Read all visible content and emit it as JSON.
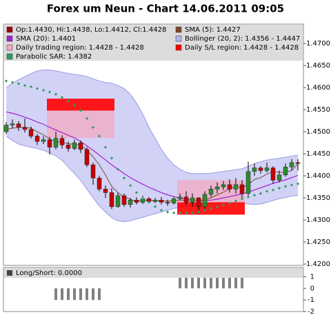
{
  "chart_data": {
    "type": "candlestick",
    "title": "Forex um Neun - Chart 14.06.2011 09:05",
    "ylim": [
      1.4197,
      1.4744
    ],
    "yticks": [
      {
        "value": 1.47,
        "label": "1.4700"
      },
      {
        "value": 1.465,
        "label": "1.4650"
      },
      {
        "value": 1.46,
        "label": "1.4600"
      },
      {
        "value": 1.455,
        "label": "1.4550"
      },
      {
        "value": 1.45,
        "label": "1.4500"
      },
      {
        "value": 1.445,
        "label": "1.4450"
      },
      {
        "value": 1.44,
        "label": "1.4400"
      },
      {
        "value": 1.435,
        "label": "1.4350"
      },
      {
        "value": 1.43,
        "label": "1.4300"
      },
      {
        "value": 1.425,
        "label": "1.4250"
      },
      {
        "value": 1.42,
        "label": "1.4200"
      }
    ],
    "candles": {
      "name": "Op:1.4430, Hi:1.4438, Lo:1.4412, Cl:1.4428",
      "color": "#a00000",
      "up_color": "#2e8b2e",
      "down_color": "#c80000",
      "open": [
        1.45,
        1.4515,
        1.4518,
        1.451,
        1.4505,
        1.449,
        1.4478,
        1.4482,
        1.4465,
        1.4485,
        1.447,
        1.4462,
        1.4475,
        1.446,
        1.4425,
        1.4395,
        1.437,
        1.4362,
        1.433,
        1.4355,
        1.4335,
        1.4345,
        1.434,
        1.4348,
        1.4342,
        1.4345,
        1.434,
        1.4338,
        1.4348,
        1.4352,
        1.434,
        1.435,
        1.433,
        1.4358,
        1.437,
        1.4375,
        1.438,
        1.437,
        1.438,
        1.436,
        1.441,
        1.4418,
        1.4412,
        1.4418,
        1.439,
        1.4402,
        1.442,
        1.443
      ],
      "high": [
        1.4522,
        1.4528,
        1.4524,
        1.453,
        1.4512,
        1.4495,
        1.449,
        1.4488,
        1.45,
        1.4492,
        1.4478,
        1.4482,
        1.448,
        1.4465,
        1.443,
        1.44,
        1.4378,
        1.4372,
        1.4362,
        1.436,
        1.435,
        1.4352,
        1.4355,
        1.4352,
        1.435,
        1.4352,
        1.4346,
        1.4352,
        1.436,
        1.4365,
        1.436,
        1.4352,
        1.4365,
        1.4378,
        1.4385,
        1.4388,
        1.4392,
        1.4395,
        1.439,
        1.4432,
        1.4428,
        1.4422,
        1.443,
        1.4422,
        1.4412,
        1.4428,
        1.4438,
        1.4438
      ],
      "low": [
        1.4495,
        1.4508,
        1.4502,
        1.4498,
        1.4485,
        1.447,
        1.4472,
        1.4448,
        1.446,
        1.4462,
        1.4455,
        1.4458,
        1.4452,
        1.442,
        1.438,
        1.4365,
        1.435,
        1.4325,
        1.4328,
        1.433,
        1.4328,
        1.4335,
        1.4336,
        1.4338,
        1.4338,
        1.4335,
        1.4332,
        1.4335,
        1.4345,
        1.4335,
        1.433,
        1.4322,
        1.4325,
        1.4352,
        1.436,
        1.4368,
        1.4362,
        1.436,
        1.4348,
        1.4355,
        1.44,
        1.4405,
        1.4408,
        1.4382,
        1.4385,
        1.4398,
        1.4412,
        1.4412
      ],
      "close": [
        1.4515,
        1.4518,
        1.451,
        1.4505,
        1.449,
        1.4478,
        1.4482,
        1.4465,
        1.4485,
        1.447,
        1.4462,
        1.4475,
        1.446,
        1.4425,
        1.4395,
        1.437,
        1.4362,
        1.433,
        1.4355,
        1.4335,
        1.4345,
        1.434,
        1.4348,
        1.4342,
        1.4345,
        1.434,
        1.4338,
        1.4348,
        1.4352,
        1.434,
        1.435,
        1.433,
        1.4358,
        1.437,
        1.4375,
        1.438,
        1.437,
        1.438,
        1.436,
        1.441,
        1.4418,
        1.4412,
        1.4418,
        1.439,
        1.4402,
        1.442,
        1.443,
        1.4428
      ]
    },
    "sma5": {
      "name": "SMA (5): 1.4427",
      "color": "#7a4a2a",
      "values": [
        1.4505,
        1.4508,
        1.451,
        1.451,
        1.4508,
        1.45,
        1.4493,
        1.4484,
        1.4478,
        1.4476,
        1.4473,
        1.4471,
        1.447,
        1.4458,
        1.4443,
        1.4425,
        1.4402,
        1.4376,
        1.4362,
        1.4352,
        1.4347,
        1.4341,
        1.4345,
        1.4344,
        1.4344,
        1.4343,
        1.4343,
        1.4343,
        1.4345,
        1.4344,
        1.4346,
        1.4344,
        1.4346,
        1.435,
        1.4357,
        1.4363,
        1.4371,
        1.4375,
        1.4373,
        1.438,
        1.4392,
        1.4396,
        1.4404,
        1.441,
        1.4408,
        1.4408,
        1.4412,
        1.4427
      ]
    },
    "sma20": {
      "name": "SMA (20): 1.4401",
      "color": "#a020d0",
      "values": [
        1.4545,
        1.4542,
        1.4538,
        1.4533,
        1.4528,
        1.4522,
        1.4517,
        1.451,
        1.4504,
        1.4498,
        1.4492,
        1.4486,
        1.4478,
        1.4468,
        1.4458,
        1.4447,
        1.4436,
        1.4425,
        1.4415,
        1.4405,
        1.4396,
        1.4388,
        1.4381,
        1.4374,
        1.4368,
        1.4362,
        1.4357,
        1.4353,
        1.435,
        1.4347,
        1.4345,
        1.4344,
        1.4344,
        1.4345,
        1.4347,
        1.435,
        1.4353,
        1.4356,
        1.4359,
        1.4363,
        1.4368,
        1.4373,
        1.4378,
        1.4383,
        1.4387,
        1.4391,
        1.4396,
        1.4401
      ]
    },
    "bollinger": {
      "name": "Bollinger (20, 2): 1.4356 - 1.4447",
      "color": "#b4b4f0",
      "upper": [
        1.46,
        1.461,
        1.4618,
        1.4625,
        1.4632,
        1.4638,
        1.464,
        1.464,
        1.4638,
        1.4635,
        1.4632,
        1.463,
        1.4628,
        1.4625,
        1.462,
        1.4615,
        1.4612,
        1.461,
        1.4605,
        1.4598,
        1.4585,
        1.4565,
        1.454,
        1.451,
        1.4485,
        1.446,
        1.444,
        1.4425,
        1.4415,
        1.4408,
        1.4405,
        1.4405,
        1.4405,
        1.4406,
        1.4408,
        1.441,
        1.4412,
        1.4414,
        1.4416,
        1.4422,
        1.4428,
        1.4432,
        1.4436,
        1.4438,
        1.444,
        1.4442,
        1.4445,
        1.4447
      ],
      "lower": [
        1.449,
        1.448,
        1.4472,
        1.4468,
        1.4465,
        1.4462,
        1.4458,
        1.4452,
        1.4445,
        1.4435,
        1.442,
        1.4405,
        1.439,
        1.437,
        1.435,
        1.4332,
        1.4318,
        1.4305,
        1.4298,
        1.4296,
        1.4298,
        1.4302,
        1.4306,
        1.431,
        1.4314,
        1.4318,
        1.4322,
        1.4326,
        1.4328,
        1.433,
        1.4332,
        1.4334,
        1.4335,
        1.4336,
        1.4336,
        1.4336,
        1.4337,
        1.4338,
        1.4338,
        1.4336,
        1.4335,
        1.4336,
        1.434,
        1.4344,
        1.4348,
        1.4351,
        1.4354,
        1.4356
      ]
    },
    "trading_region": {
      "name": "Daily trading region: 1.4428 - 1.4428",
      "color": "#f2a8c0",
      "regions": [
        {
          "start": 7,
          "end": 17,
          "low": 1.4486,
          "high": 1.4548
        },
        {
          "start": 28,
          "end": 38,
          "low": 1.434,
          "high": 1.439
        }
      ]
    },
    "sl_region": {
      "name": "Daily S/L region: 1.4428 - 1.4428",
      "color": "#ff0000",
      "regions": [
        {
          "start": 7,
          "end": 17,
          "low": 1.4548,
          "high": 1.4575
        },
        {
          "start": 28,
          "end": 38,
          "low": 1.4312,
          "high": 1.434
        }
      ]
    },
    "sar": {
      "name": "Parabolic SAR: 1.4382",
      "color": "#2e9e5e",
      "values": [
        1.4615,
        1.4612,
        1.4609,
        1.4605,
        1.4602,
        1.4598,
        1.4594,
        1.459,
        1.4585,
        1.4578,
        1.457,
        1.456,
        1.4548,
        1.453,
        1.451,
        1.449,
        1.4465,
        1.444,
        1.4415,
        1.4395,
        1.4378,
        1.4362,
        1.4348,
        1.434,
        1.433,
        1.4322,
        1.4318,
        1.4316,
        1.4316,
        1.4316,
        1.4316,
        1.4318,
        1.4322,
        1.4326,
        1.433,
        1.4334,
        1.4338,
        1.4343,
        1.4348,
        1.4352,
        1.4356,
        1.436,
        1.4365,
        1.4368,
        1.4372,
        1.4376,
        1.4379,
        1.4382
      ]
    },
    "long_short": {
      "name": "Long/Short: 0.0000",
      "color": "#808080",
      "ylim": [
        -2,
        1.8
      ],
      "yticks": [
        1,
        0,
        -1,
        -2
      ],
      "values": [
        0,
        0,
        0,
        0,
        0,
        0,
        0,
        0,
        -1,
        -1,
        -1,
        -1,
        -1,
        -1,
        -1,
        -1,
        0,
        0,
        0,
        0,
        0,
        0,
        0,
        0,
        0,
        0,
        0,
        0,
        1,
        1,
        1,
        1,
        1,
        1,
        1,
        1,
        1,
        1,
        1,
        0,
        0,
        0,
        0,
        0,
        0,
        0,
        0,
        0
      ]
    }
  }
}
